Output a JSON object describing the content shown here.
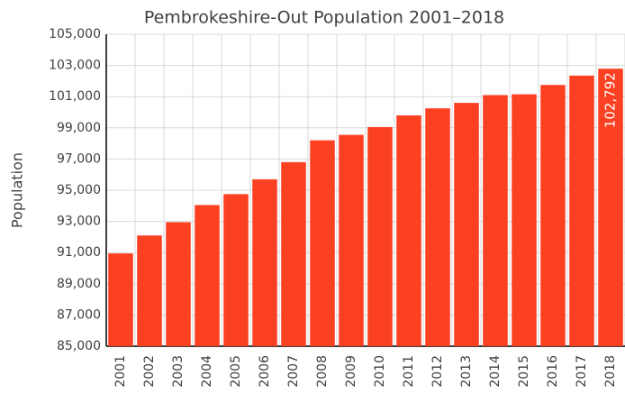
{
  "chart_data": {
    "type": "bar",
    "title": "Pembrokeshire-Out Population 2001–2018",
    "y_label": "Population",
    "categories": [
      "2001",
      "2002",
      "2003",
      "2004",
      "2005",
      "2006",
      "2007",
      "2008",
      "2009",
      "2010",
      "2011",
      "2012",
      "2013",
      "2014",
      "2015",
      "2016",
      "2017",
      "2018"
    ],
    "values": [
      90950,
      92100,
      92950,
      94050,
      94750,
      95700,
      96800,
      98200,
      98550,
      99050,
      99800,
      100250,
      100600,
      101100,
      101150,
      101750,
      102350,
      102792
    ],
    "value_labels": [
      null,
      null,
      null,
      null,
      null,
      null,
      null,
      null,
      null,
      null,
      null,
      null,
      null,
      null,
      null,
      null,
      null,
      "102,792"
    ],
    "color": "#fc4022",
    "ylim": [
      85000,
      105000
    ],
    "yticks": [
      {
        "value": 85000,
        "label": "85,000"
      },
      {
        "value": 87000,
        "label": "87,000"
      },
      {
        "value": 89000,
        "label": "89,000"
      },
      {
        "value": 91000,
        "label": "91,000"
      },
      {
        "value": 93000,
        "label": "93,000"
      },
      {
        "value": 95000,
        "label": "95,000"
      },
      {
        "value": 97000,
        "label": "97,000"
      },
      {
        "value": 99000,
        "label": "99,000"
      },
      {
        "value": 101000,
        "label": "101,000"
      },
      {
        "value": 103000,
        "label": "103,000"
      },
      {
        "value": 105000,
        "label": "105,000"
      }
    ],
    "grid": true
  }
}
